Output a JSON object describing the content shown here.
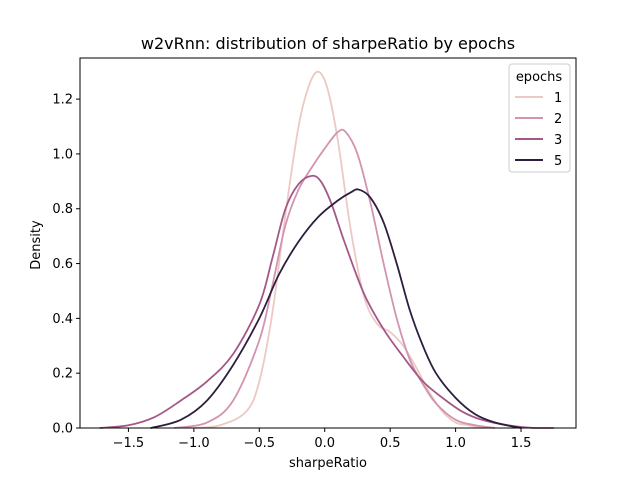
{
  "chart_data": {
    "type": "line",
    "title": "w2vRnn: distribution of sharpeRatio by epochs",
    "xlabel": "sharpeRatio",
    "ylabel": "Density",
    "xlim": [
      -1.87,
      1.92
    ],
    "ylim": [
      0,
      1.35
    ],
    "xticks": [
      -1.5,
      -1.0,
      -0.5,
      0.0,
      0.5,
      1.0,
      1.5
    ],
    "xtick_labels": [
      "−1.5",
      "−1.0",
      "−0.5",
      "0.0",
      "0.5",
      "1.0",
      "1.5"
    ],
    "yticks": [
      0.0,
      0.2,
      0.4,
      0.6,
      0.8,
      1.0,
      1.2
    ],
    "ytick_labels": [
      "0.0",
      "0.2",
      "0.4",
      "0.6",
      "0.8",
      "1.0",
      "1.2"
    ],
    "legend": {
      "title": "epochs",
      "position": "top-right"
    },
    "series": [
      {
        "name": "1",
        "color": "#ecc9c3",
        "points": [
          [
            -1.0,
            0.0
          ],
          [
            -0.8,
            0.01
          ],
          [
            -0.6,
            0.06
          ],
          [
            -0.5,
            0.17
          ],
          [
            -0.4,
            0.42
          ],
          [
            -0.3,
            0.78
          ],
          [
            -0.2,
            1.1
          ],
          [
            -0.12,
            1.25
          ],
          [
            -0.05,
            1.3
          ],
          [
            0.02,
            1.24
          ],
          [
            0.1,
            1.05
          ],
          [
            0.2,
            0.72
          ],
          [
            0.3,
            0.48
          ],
          [
            0.4,
            0.38
          ],
          [
            0.5,
            0.35
          ],
          [
            0.6,
            0.3
          ],
          [
            0.7,
            0.22
          ],
          [
            0.8,
            0.13
          ],
          [
            0.9,
            0.06
          ],
          [
            1.0,
            0.02
          ],
          [
            1.1,
            0.01
          ],
          [
            1.2,
            0.0
          ]
        ]
      },
      {
        "name": "2",
        "color": "#d294b0",
        "points": [
          [
            -1.15,
            0.0
          ],
          [
            -0.9,
            0.02
          ],
          [
            -0.7,
            0.1
          ],
          [
            -0.5,
            0.32
          ],
          [
            -0.4,
            0.52
          ],
          [
            -0.3,
            0.74
          ],
          [
            -0.2,
            0.87
          ],
          [
            -0.1,
            0.95
          ],
          [
            0.0,
            1.02
          ],
          [
            0.1,
            1.08
          ],
          [
            0.16,
            1.08
          ],
          [
            0.25,
            1.0
          ],
          [
            0.35,
            0.82
          ],
          [
            0.45,
            0.6
          ],
          [
            0.55,
            0.4
          ],
          [
            0.65,
            0.25
          ],
          [
            0.75,
            0.16
          ],
          [
            0.85,
            0.09
          ],
          [
            1.0,
            0.03
          ],
          [
            1.15,
            0.01
          ],
          [
            1.3,
            0.0
          ]
        ]
      },
      {
        "name": "3",
        "color": "#a45888",
        "points": [
          [
            -1.72,
            0.0
          ],
          [
            -1.5,
            0.01
          ],
          [
            -1.3,
            0.04
          ],
          [
            -1.1,
            0.1
          ],
          [
            -0.9,
            0.17
          ],
          [
            -0.7,
            0.27
          ],
          [
            -0.5,
            0.45
          ],
          [
            -0.4,
            0.62
          ],
          [
            -0.3,
            0.8
          ],
          [
            -0.2,
            0.89
          ],
          [
            -0.1,
            0.92
          ],
          [
            -0.03,
            0.9
          ],
          [
            0.05,
            0.82
          ],
          [
            0.15,
            0.68
          ],
          [
            0.3,
            0.49
          ],
          [
            0.45,
            0.36
          ],
          [
            0.6,
            0.26
          ],
          [
            0.75,
            0.17
          ],
          [
            0.9,
            0.11
          ],
          [
            1.05,
            0.06
          ],
          [
            1.2,
            0.03
          ],
          [
            1.4,
            0.01
          ],
          [
            1.6,
            0.0
          ],
          [
            1.75,
            0.0
          ]
        ]
      },
      {
        "name": "5",
        "color": "#2d1e3e",
        "points": [
          [
            -1.33,
            0.0
          ],
          [
            -1.1,
            0.03
          ],
          [
            -0.9,
            0.1
          ],
          [
            -0.7,
            0.23
          ],
          [
            -0.5,
            0.4
          ],
          [
            -0.35,
            0.56
          ],
          [
            -0.2,
            0.68
          ],
          [
            -0.05,
            0.77
          ],
          [
            0.1,
            0.83
          ],
          [
            0.2,
            0.86
          ],
          [
            0.26,
            0.87
          ],
          [
            0.35,
            0.84
          ],
          [
            0.45,
            0.75
          ],
          [
            0.55,
            0.6
          ],
          [
            0.65,
            0.43
          ],
          [
            0.75,
            0.3
          ],
          [
            0.85,
            0.2
          ],
          [
            1.0,
            0.11
          ],
          [
            1.15,
            0.05
          ],
          [
            1.3,
            0.02
          ],
          [
            1.5,
            0.0
          ]
        ]
      }
    ]
  }
}
